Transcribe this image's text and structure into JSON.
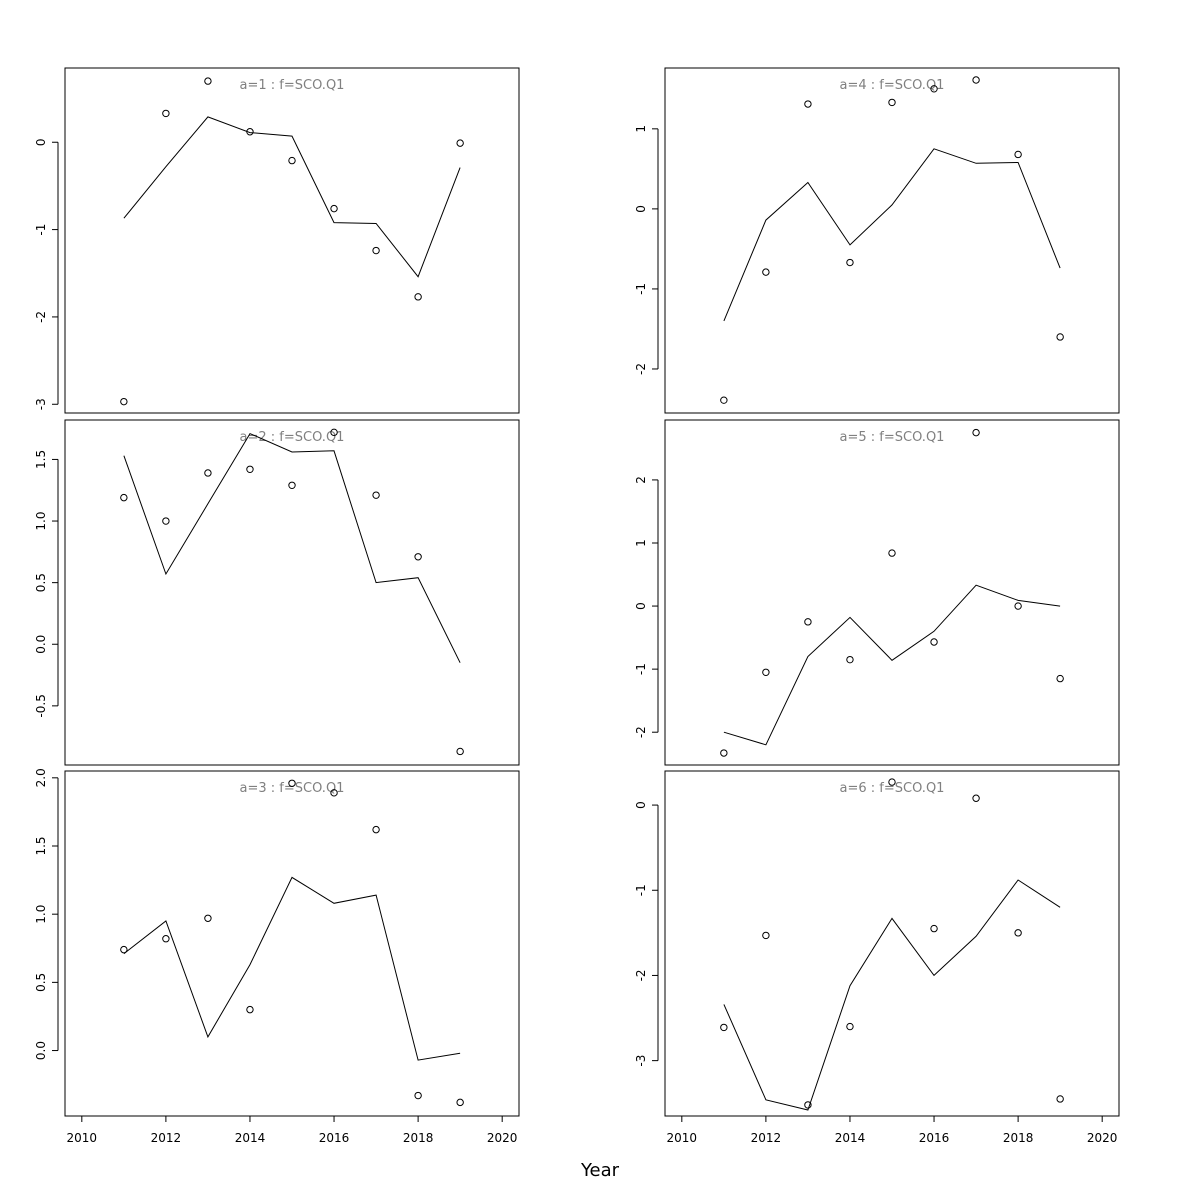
{
  "figure": {
    "xlabel": "Year"
  },
  "chart_data": [
    {
      "type": "line",
      "title": "a=1 : f=SCO.Q1",
      "x": [
        2011,
        2012,
        2013,
        2014,
        2015,
        2016,
        2017,
        2018,
        2019
      ],
      "series": [
        {
          "style": "line",
          "values": [
            -0.87,
            -0.28,
            0.29,
            0.11,
            0.07,
            -0.92,
            -0.93,
            -1.54,
            -0.29
          ]
        },
        {
          "style": "points",
          "values": [
            -2.97,
            0.33,
            0.7,
            0.12,
            -0.21,
            -0.76,
            -1.24,
            -1.77,
            -0.01
          ]
        }
      ],
      "xlim": [
        2009.6,
        2020.4
      ],
      "ylim": [
        -3.1,
        0.85
      ],
      "yticks": [
        -3,
        -2,
        -1,
        0
      ],
      "ytick_labels": [
        "-3",
        "-2",
        "-1",
        "0"
      ],
      "xticks": [],
      "xtick_labels": []
    },
    {
      "type": "line",
      "title": "a=2 : f=SCO.Q1",
      "x": [
        2011,
        2012,
        2013,
        2014,
        2015,
        2016,
        2017,
        2018,
        2019
      ],
      "series": [
        {
          "style": "line",
          "values": [
            1.53,
            0.57,
            1.14,
            1.71,
            1.56,
            1.57,
            0.5,
            0.54,
            -0.15
          ]
        },
        {
          "style": "points",
          "values": [
            1.19,
            1.0,
            1.39,
            1.42,
            1.29,
            1.72,
            1.21,
            0.71,
            -0.87
          ]
        }
      ],
      "xlim": [
        2009.6,
        2020.4
      ],
      "ylim": [
        -0.98,
        1.82
      ],
      "yticks": [
        -0.5,
        0.0,
        0.5,
        1.0,
        1.5
      ],
      "ytick_labels": [
        "-0.5",
        "0.0",
        "0.5",
        "1.0",
        "1.5"
      ],
      "xticks": [],
      "xtick_labels": []
    },
    {
      "type": "line",
      "title": "a=3 : f=SCO.Q1",
      "x": [
        2011,
        2012,
        2013,
        2014,
        2015,
        2016,
        2017,
        2018,
        2019
      ],
      "series": [
        {
          "style": "line",
          "values": [
            0.71,
            0.95,
            0.1,
            0.63,
            1.27,
            1.08,
            1.14,
            -0.07,
            -0.02
          ]
        },
        {
          "style": "points",
          "values": [
            0.74,
            0.82,
            0.97,
            0.3,
            1.96,
            1.89,
            1.62,
            -0.33,
            -0.38
          ]
        }
      ],
      "xlim": [
        2009.6,
        2020.4
      ],
      "ylim": [
        -0.48,
        2.05
      ],
      "yticks": [
        0.0,
        0.5,
        1.0,
        1.5,
        2.0
      ],
      "ytick_labels": [
        "0.0",
        "0.5",
        "1.0",
        "1.5",
        "2.0"
      ],
      "xticks": [
        2010,
        2012,
        2014,
        2016,
        2018,
        2020
      ],
      "xtick_labels": [
        "2010",
        "2012",
        "2014",
        "2016",
        "2018",
        "2020"
      ]
    },
    {
      "type": "line",
      "title": "a=4 : f=SCO.Q1",
      "x": [
        2011,
        2012,
        2013,
        2014,
        2015,
        2016,
        2017,
        2018,
        2019
      ],
      "series": [
        {
          "style": "line",
          "values": [
            -1.4,
            -0.14,
            0.33,
            -0.45,
            0.05,
            0.75,
            0.57,
            0.58,
            -0.74
          ]
        },
        {
          "style": "points",
          "values": [
            -2.39,
            -0.79,
            1.31,
            -0.67,
            1.33,
            1.5,
            1.61,
            0.68,
            -1.6
          ]
        }
      ],
      "xlim": [
        2009.6,
        2020.4
      ],
      "ylim": [
        -2.55,
        1.76
      ],
      "yticks": [
        -2,
        -1,
        0,
        1
      ],
      "ytick_labels": [
        "-2",
        "-1",
        "0",
        "1"
      ],
      "xticks": [],
      "xtick_labels": []
    },
    {
      "type": "line",
      "title": "a=5 : f=SCO.Q1",
      "x": [
        2011,
        2012,
        2013,
        2014,
        2015,
        2016,
        2017,
        2018,
        2019
      ],
      "series": [
        {
          "style": "line",
          "values": [
            -2.0,
            -2.2,
            -0.8,
            -0.18,
            -0.86,
            -0.4,
            0.33,
            0.09,
            0.0
          ]
        },
        {
          "style": "points",
          "values": [
            -2.33,
            -1.05,
            -0.25,
            -0.85,
            0.84,
            -0.57,
            2.75,
            0.0,
            -1.15
          ]
        }
      ],
      "xlim": [
        2009.6,
        2020.4
      ],
      "ylim": [
        -2.52,
        2.95
      ],
      "yticks": [
        -2,
        -1,
        0,
        1,
        2
      ],
      "ytick_labels": [
        "-2",
        "-1",
        "0",
        "1",
        "2"
      ],
      "xticks": [],
      "xtick_labels": []
    },
    {
      "type": "line",
      "title": "a=6 : f=SCO.Q1",
      "x": [
        2011,
        2012,
        2013,
        2014,
        2015,
        2016,
        2017,
        2018,
        2019
      ],
      "series": [
        {
          "style": "line",
          "values": [
            -2.34,
            -3.46,
            -3.58,
            -2.12,
            -1.33,
            -2.0,
            -1.54,
            -0.88,
            -1.2
          ]
        },
        {
          "style": "points",
          "values": [
            -2.61,
            -1.53,
            -3.52,
            -2.6,
            0.27,
            -1.45,
            0.08,
            -1.5,
            -3.45
          ]
        }
      ],
      "xlim": [
        2009.6,
        2020.4
      ],
      "ylim": [
        -3.65,
        0.4
      ],
      "yticks": [
        -3,
        -2,
        -1,
        0
      ],
      "ytick_labels": [
        "-3",
        "-2",
        "-1",
        "0"
      ],
      "xticks": [
        2010,
        2012,
        2014,
        2016,
        2018,
        2020
      ],
      "xtick_labels": [
        "2010",
        "2012",
        "2014",
        "2016",
        "2018",
        "2020"
      ]
    }
  ]
}
